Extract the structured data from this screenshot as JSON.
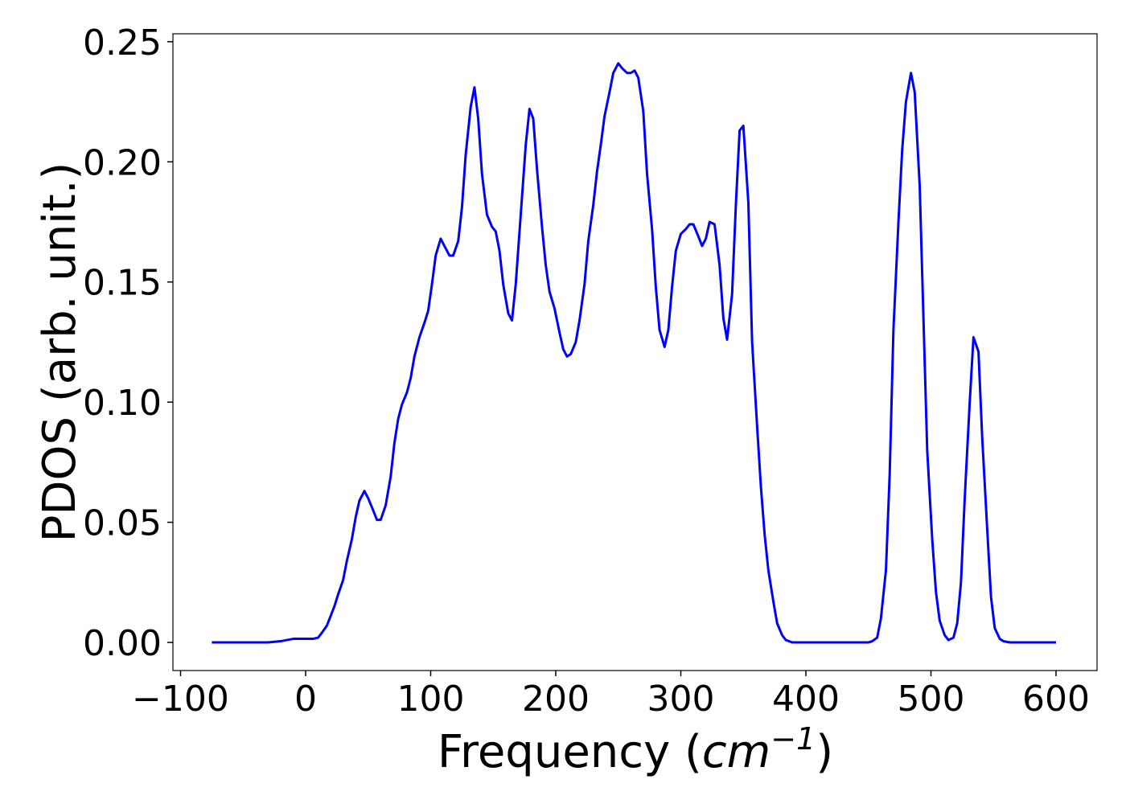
{
  "chart_data": {
    "type": "line",
    "x_label": [
      "Frequency (",
      "cm",
      "−1",
      ")"
    ],
    "y_label": "PDOS (arb. unit.)",
    "xlim": [
      -106.1,
      632.8
    ],
    "ylim": [
      -0.0117,
      0.2533
    ],
    "xticks": [
      {
        "value": -100,
        "label": "−100"
      },
      0,
      100,
      200,
      300,
      400,
      500,
      600
    ],
    "yticks": [
      {
        "value": 0,
        "label": "0.00"
      },
      {
        "value": 0.05,
        "label": "0.05"
      },
      {
        "value": 0.1,
        "label": "0.10"
      },
      {
        "value": 0.15,
        "label": "0.15"
      },
      {
        "value": 0.2,
        "label": "0.20"
      },
      {
        "value": 0.25,
        "label": "0.25"
      }
    ],
    "grid": false,
    "series": [
      {
        "color": "#0000ff",
        "x": [
          -75,
          -30,
          -20,
          -10,
          0,
          6,
          10,
          13,
          17,
          20,
          23,
          26,
          30,
          33,
          37,
          40,
          43,
          47,
          50,
          54,
          57,
          60,
          64,
          68,
          71,
          74,
          77,
          81,
          84,
          87,
          91,
          95,
          98,
          101,
          104,
          108,
          111,
          115,
          118,
          122,
          125,
          128,
          132,
          135,
          138,
          141,
          145,
          149,
          152,
          155,
          158,
          162,
          165,
          168,
          172,
          176,
          179,
          182,
          185,
          189,
          192,
          195,
          199,
          203,
          206,
          209,
          212,
          216,
          219,
          223,
          226,
          230,
          233,
          236,
          239,
          243,
          246,
          250,
          253,
          257,
          260,
          263,
          266,
          270,
          273,
          277,
          280,
          283,
          287,
          290,
          293,
          296,
          300,
          304,
          307,
          310,
          314,
          317,
          320,
          323,
          327,
          331,
          334,
          337,
          341,
          344,
          347,
          350,
          354,
          357,
          361,
          364,
          367,
          370,
          374,
          377,
          381,
          384,
          389,
          450,
          453,
          457,
          460,
          464,
          467,
          470,
          474,
          477,
          480,
          484,
          487,
          491,
          494,
          497,
          501,
          504,
          507,
          511,
          514,
          518,
          521,
          524,
          527,
          531,
          534,
          538,
          541,
          545,
          548,
          551,
          555,
          558,
          563,
          600
        ],
        "values": [
          0,
          0,
          0.0005,
          0.0015,
          0.0015,
          0.0015,
          0.002,
          0.004,
          0.007,
          0.011,
          0.015,
          0.02,
          0.026,
          0.034,
          0.043,
          0.052,
          0.059,
          0.063,
          0.06,
          0.055,
          0.051,
          0.051,
          0.057,
          0.069,
          0.083,
          0.093,
          0.099,
          0.104,
          0.11,
          0.119,
          0.127,
          0.133,
          0.138,
          0.149,
          0.161,
          0.168,
          0.165,
          0.161,
          0.161,
          0.167,
          0.181,
          0.203,
          0.223,
          0.231,
          0.218,
          0.195,
          0.178,
          0.173,
          0.171,
          0.163,
          0.149,
          0.137,
          0.134,
          0.149,
          0.178,
          0.207,
          0.222,
          0.218,
          0.197,
          0.173,
          0.157,
          0.146,
          0.139,
          0.129,
          0.122,
          0.119,
          0.12,
          0.125,
          0.134,
          0.149,
          0.167,
          0.182,
          0.196,
          0.207,
          0.219,
          0.229,
          0.237,
          0.241,
          0.239,
          0.237,
          0.237,
          0.238,
          0.235,
          0.221,
          0.195,
          0.172,
          0.148,
          0.13,
          0.123,
          0.13,
          0.148,
          0.163,
          0.17,
          0.172,
          0.174,
          0.174,
          0.169,
          0.165,
          0.168,
          0.175,
          0.174,
          0.157,
          0.135,
          0.126,
          0.145,
          0.182,
          0.213,
          0.215,
          0.183,
          0.125,
          0.09,
          0.065,
          0.045,
          0.03,
          0.017,
          0.008,
          0.003,
          0.001,
          0,
          0,
          0.0005,
          0.002,
          0.01,
          0.03,
          0.07,
          0.13,
          0.175,
          0.205,
          0.225,
          0.237,
          0.229,
          0.19,
          0.135,
          0.08,
          0.043,
          0.021,
          0.009,
          0.003,
          0.001,
          0.002,
          0.008,
          0.025,
          0.06,
          0.1,
          0.127,
          0.121,
          0.085,
          0.047,
          0.019,
          0.006,
          0.0015,
          0.0005,
          0,
          0
        ]
      }
    ]
  }
}
